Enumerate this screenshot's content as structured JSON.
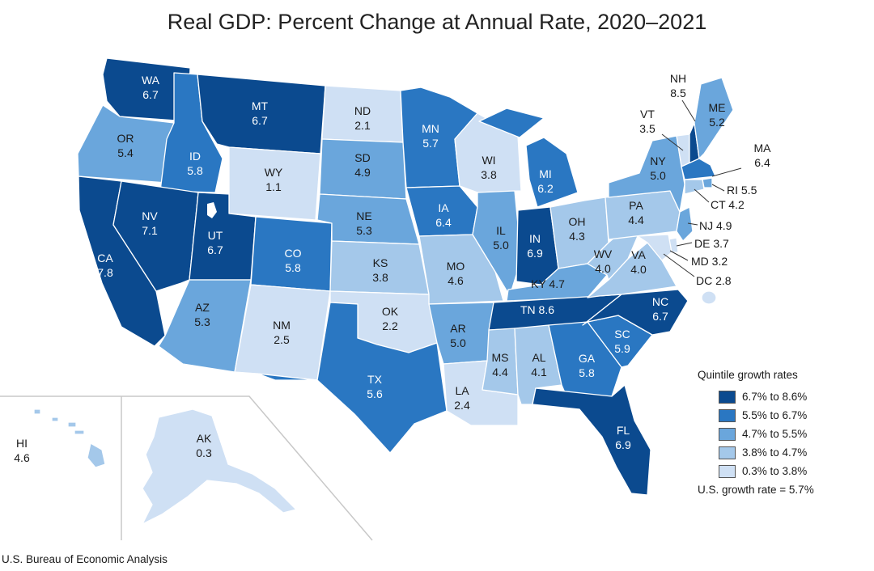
{
  "title": "Real GDP: Percent Change at Annual Rate, 2020–2021",
  "source": "U.S. Bureau of Economic Analysis",
  "legend": {
    "title": "Quintile growth rates",
    "items": [
      {
        "label": "6.7% to 8.6%",
        "color": "#0b4a8f"
      },
      {
        "label": "5.5% to 6.7%",
        "color": "#2a77c2"
      },
      {
        "label": "4.7% to 5.5%",
        "color": "#6aa6dc"
      },
      {
        "label": "3.8% to 4.7%",
        "color": "#a4c8ea"
      },
      {
        "label": "0.3% to 3.8%",
        "color": "#cfe0f4"
      }
    ],
    "note": "U.S. growth rate = 5.7%"
  },
  "states": {
    "WA": {
      "abbr": "WA",
      "value": "6.7",
      "tier": 0
    },
    "OR": {
      "abbr": "OR",
      "value": "5.4",
      "tier": 2
    },
    "CA": {
      "abbr": "CA",
      "value": "7.8",
      "tier": 0
    },
    "ID": {
      "abbr": "ID",
      "value": "5.8",
      "tier": 1
    },
    "NV": {
      "abbr": "NV",
      "value": "7.1",
      "tier": 0
    },
    "MT": {
      "abbr": "MT",
      "value": "6.7",
      "tier": 0
    },
    "WY": {
      "abbr": "WY",
      "value": "1.1",
      "tier": 4
    },
    "UT": {
      "abbr": "UT",
      "value": "6.7",
      "tier": 0
    },
    "AZ": {
      "abbr": "AZ",
      "value": "5.3",
      "tier": 2
    },
    "CO": {
      "abbr": "CO",
      "value": "5.8",
      "tier": 1
    },
    "NM": {
      "abbr": "NM",
      "value": "2.5",
      "tier": 4
    },
    "ND": {
      "abbr": "ND",
      "value": "2.1",
      "tier": 4
    },
    "SD": {
      "abbr": "SD",
      "value": "4.9",
      "tier": 2
    },
    "NE": {
      "abbr": "NE",
      "value": "5.3",
      "tier": 2
    },
    "KS": {
      "abbr": "KS",
      "value": "3.8",
      "tier": 3
    },
    "OK": {
      "abbr": "OK",
      "value": "2.2",
      "tier": 4
    },
    "TX": {
      "abbr": "TX",
      "value": "5.6",
      "tier": 1
    },
    "MN": {
      "abbr": "MN",
      "value": "5.7",
      "tier": 1
    },
    "IA": {
      "abbr": "IA",
      "value": "6.4",
      "tier": 1
    },
    "MO": {
      "abbr": "MO",
      "value": "4.6",
      "tier": 3
    },
    "AR": {
      "abbr": "AR",
      "value": "5.0",
      "tier": 2
    },
    "LA": {
      "abbr": "LA",
      "value": "2.4",
      "tier": 4
    },
    "WI": {
      "abbr": "WI",
      "value": "3.8",
      "tier": 4
    },
    "IL": {
      "abbr": "IL",
      "value": "5.0",
      "tier": 2
    },
    "MI": {
      "abbr": "MI",
      "value": "6.2",
      "tier": 1
    },
    "IN": {
      "abbr": "IN",
      "value": "6.9",
      "tier": 0
    },
    "OH": {
      "abbr": "OH",
      "value": "4.3",
      "tier": 3
    },
    "KY": {
      "abbr": "KY",
      "value": "4.7",
      "tier": 2
    },
    "TN": {
      "abbr": "TN",
      "value": "8.6",
      "tier": 0
    },
    "MS": {
      "abbr": "MS",
      "value": "4.4",
      "tier": 3
    },
    "AL": {
      "abbr": "AL",
      "value": "4.1",
      "tier": 3
    },
    "GA": {
      "abbr": "GA",
      "value": "5.8",
      "tier": 1
    },
    "FL": {
      "abbr": "FL",
      "value": "6.9",
      "tier": 0
    },
    "SC": {
      "abbr": "SC",
      "value": "5.9",
      "tier": 1
    },
    "NC": {
      "abbr": "NC",
      "value": "6.7",
      "tier": 0
    },
    "VA": {
      "abbr": "VA",
      "value": "4.0",
      "tier": 3
    },
    "WV": {
      "abbr": "WV",
      "value": "4.0",
      "tier": 3
    },
    "PA": {
      "abbr": "PA",
      "value": "4.4",
      "tier": 3
    },
    "NY": {
      "abbr": "NY",
      "value": "5.0",
      "tier": 2
    },
    "VT": {
      "abbr": "VT",
      "value": "3.5",
      "tier": 4
    },
    "NH": {
      "abbr": "NH",
      "value": "8.5",
      "tier": 0
    },
    "ME": {
      "abbr": "ME",
      "value": "5.2",
      "tier": 2
    },
    "MA": {
      "abbr": "MA",
      "value": "6.4",
      "tier": 1
    },
    "RI": {
      "abbr": "RI",
      "value": "5.5",
      "tier": 2
    },
    "CT": {
      "abbr": "CT",
      "value": "4.2",
      "tier": 3
    },
    "NJ": {
      "abbr": "NJ",
      "value": "4.9",
      "tier": 2
    },
    "DE": {
      "abbr": "DE",
      "value": "3.7",
      "tier": 4
    },
    "MD": {
      "abbr": "MD",
      "value": "3.2",
      "tier": 4
    },
    "DC": {
      "abbr": "DC",
      "value": "2.8",
      "tier": 4
    },
    "AK": {
      "abbr": "AK",
      "value": "0.3",
      "tier": 4
    },
    "HI": {
      "abbr": "HI",
      "value": "4.6",
      "tier": 3
    }
  }
}
